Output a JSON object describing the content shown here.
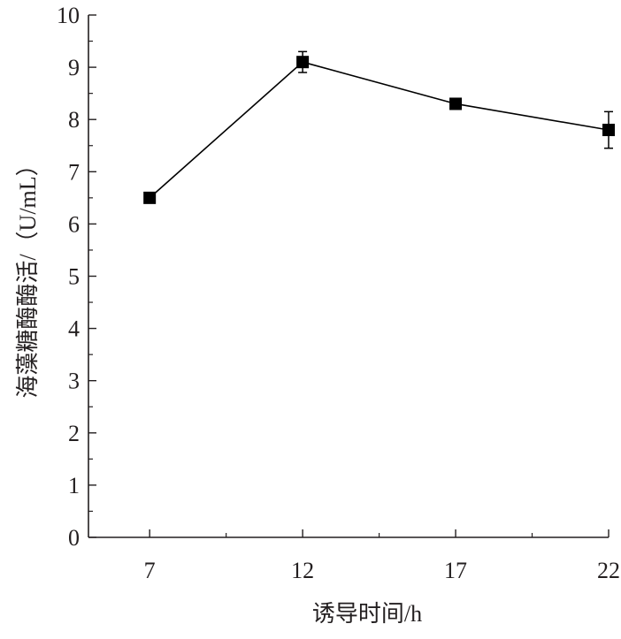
{
  "chart_data": {
    "type": "line",
    "title": "",
    "xlabel": "诱导时间/h",
    "ylabel": "海藻糖酶酶活/（U/mL）",
    "x": [
      7,
      12,
      17,
      22
    ],
    "xticks": [
      "7",
      "12",
      "17",
      "22"
    ],
    "xlim": [
      5,
      22
    ],
    "ylim": [
      0,
      10
    ],
    "yticks": [
      "0",
      "1",
      "2",
      "3",
      "4",
      "5",
      "6",
      "7",
      "8",
      "9",
      "10"
    ],
    "grid": false,
    "legend": "none",
    "series": [
      {
        "values": [
          6.5,
          9.1,
          8.3,
          7.8
        ],
        "errors": [
          0.1,
          0.2,
          0.1,
          0.35
        ],
        "marker": "square",
        "color": "#000000"
      }
    ]
  }
}
